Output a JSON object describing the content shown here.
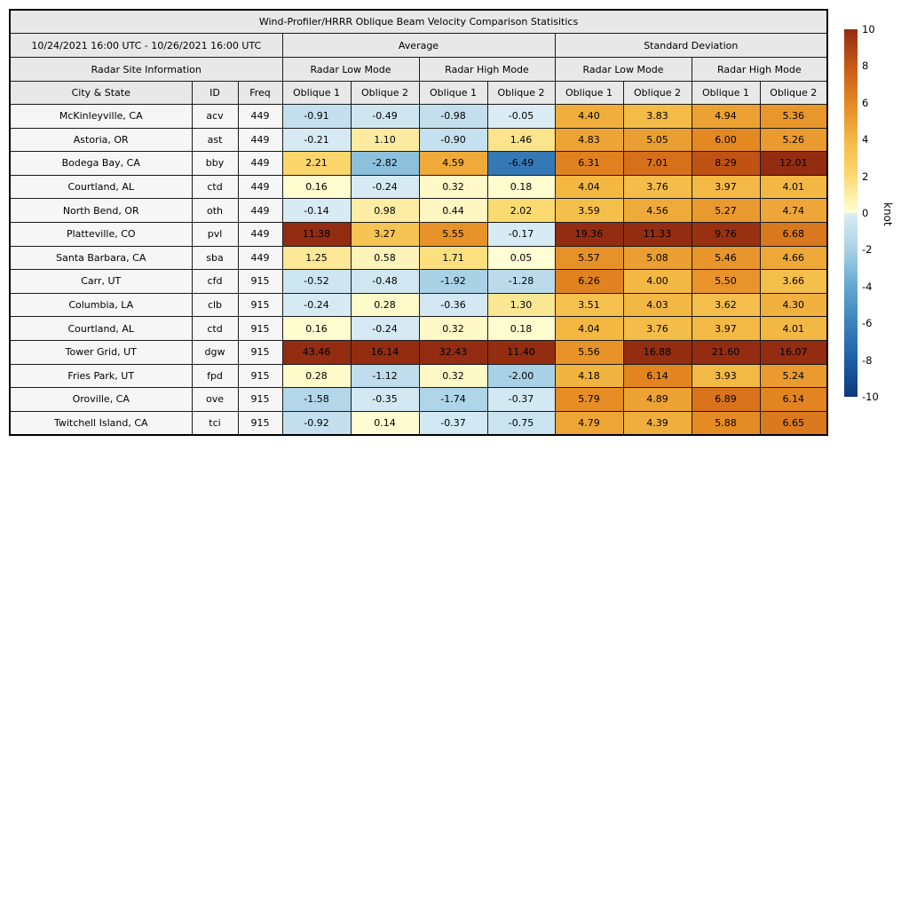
{
  "title": "Wind-Profiler/HRRR Oblique Beam Velocity Comparison Statisitics",
  "header": {
    "date_range": "10/24/2021 16:00 UTC - 10/26/2021 16:00 UTC",
    "group_average": "Average",
    "group_std": "Standard Deviation",
    "site_info": "Radar Site Information",
    "mode_labels": [
      "Radar Low Mode",
      "Radar High Mode",
      "Radar Low Mode",
      "Radar High Mode"
    ],
    "col_city": "City & State",
    "col_id": "ID",
    "col_freq": "Freq",
    "oblique_labels": [
      "Oblique 1",
      "Oblique 2",
      "Oblique 1",
      "Oblique 2",
      "Oblique 1",
      "Oblique 2",
      "Oblique 1",
      "Oblique 2"
    ]
  },
  "chart_data": {
    "type": "heatmap",
    "title": "Wind-Profiler/HRRR Oblique Beam Velocity Comparison Statisitics",
    "date_range": "10/24/2021 16:00 UTC - 10/26/2021 16:00 UTC",
    "column_groups": [
      "Average Radar Low Mode",
      "Average Radar High Mode",
      "Standard Deviation Radar Low Mode",
      "Standard Deviation Radar High Mode"
    ],
    "value_columns": [
      "Avg Low Oblique 1",
      "Avg Low Oblique 2",
      "Avg High Oblique 1",
      "Avg High Oblique 2",
      "SD Low Oblique 1",
      "SD Low Oblique 2",
      "SD High Oblique 1",
      "SD High Oblique 2"
    ],
    "rows": [
      {
        "city": "McKinleyville, CA",
        "id": "acv",
        "freq": "449",
        "values": [
          "-0.91",
          "-0.49",
          "-0.98",
          "-0.05",
          "4.40",
          "3.83",
          "4.94",
          "5.36"
        ]
      },
      {
        "city": "Astoria, OR",
        "id": "ast",
        "freq": "449",
        "values": [
          "-0.21",
          "1.10",
          "-0.90",
          "1.46",
          "4.83",
          "5.05",
          "6.00",
          "5.26"
        ]
      },
      {
        "city": "Bodega Bay, CA",
        "id": "bby",
        "freq": "449",
        "values": [
          "2.21",
          "-2.82",
          "4.59",
          "-6.49",
          "6.31",
          "7.01",
          "8.29",
          "12.01"
        ]
      },
      {
        "city": "Courtland, AL",
        "id": "ctd",
        "freq": "449",
        "values": [
          "0.16",
          "-0.24",
          "0.32",
          "0.18",
          "4.04",
          "3.76",
          "3.97",
          "4.01"
        ]
      },
      {
        "city": "North Bend, OR",
        "id": "oth",
        "freq": "449",
        "values": [
          "-0.14",
          "0.98",
          "0.44",
          "2.02",
          "3.59",
          "4.56",
          "5.27",
          "4.74"
        ]
      },
      {
        "city": "Platteville, CO",
        "id": "pvl",
        "freq": "449",
        "values": [
          "11.38",
          "3.27",
          "5.55",
          "-0.17",
          "19.36",
          "11.33",
          "9.76",
          "6.68"
        ]
      },
      {
        "city": "Santa Barbara, CA",
        "id": "sba",
        "freq": "449",
        "values": [
          "1.25",
          "0.58",
          "1.71",
          "0.05",
          "5.57",
          "5.08",
          "5.46",
          "4.66"
        ]
      },
      {
        "city": "Carr, UT",
        "id": "cfd",
        "freq": "915",
        "values": [
          "-0.52",
          "-0.48",
          "-1.92",
          "-1.28",
          "6.26",
          "4.00",
          "5.50",
          "3.66"
        ]
      },
      {
        "city": "Columbia, LA",
        "id": "clb",
        "freq": "915",
        "values": [
          "-0.24",
          "0.28",
          "-0.36",
          "1.30",
          "3.51",
          "4.03",
          "3.62",
          "4.30"
        ]
      },
      {
        "city": "Courtland, AL",
        "id": "ctd",
        "freq": "915",
        "values": [
          "0.16",
          "-0.24",
          "0.32",
          "0.18",
          "4.04",
          "3.76",
          "3.97",
          "4.01"
        ]
      },
      {
        "city": "Tower Grid, UT",
        "id": "dgw",
        "freq": "915",
        "values": [
          "43.46",
          "16.14",
          "32.43",
          "11.40",
          "5.56",
          "16.88",
          "21.60",
          "16.07"
        ]
      },
      {
        "city": "Fries Park, UT",
        "id": "fpd",
        "freq": "915",
        "values": [
          "0.28",
          "-1.12",
          "0.32",
          "-2.00",
          "4.18",
          "6.14",
          "3.93",
          "5.24"
        ]
      },
      {
        "city": "Oroville, CA",
        "id": "ove",
        "freq": "915",
        "values": [
          "-1.58",
          "-0.35",
          "-1.74",
          "-0.37",
          "5.79",
          "4.89",
          "6.89",
          "6.14"
        ]
      },
      {
        "city": "Twitchell Island, CA",
        "id": "tci",
        "freq": "915",
        "values": [
          "-0.92",
          "0.14",
          "-0.37",
          "-0.75",
          "4.79",
          "4.39",
          "5.88",
          "6.65"
        ]
      }
    ],
    "colorbar": {
      "label": "knot",
      "min": -10,
      "max": 10,
      "ticks": [
        10,
        8,
        6,
        4,
        2,
        0,
        -2,
        -4,
        -6,
        -8,
        -10
      ]
    },
    "color_scale": {
      "comment": "anchor colors at values 0,2,4,6,8,10 (pos) and 0,-2,-4,-6,-8,-10 (neg); values beyond range are clamped",
      "pos": [
        "#ffffd8",
        "#fbda70",
        "#f3b843",
        "#e48822",
        "#c85915",
        "#932c11"
      ],
      "neg": [
        "#dcedf5",
        "#a8d1e6",
        "#63a8d0",
        "#3b82bb",
        "#1e5ea6",
        "#0b3b7c"
      ]
    },
    "layout": {
      "header_bg": "#e8e8e8",
      "site_cell_bg": "#f6f6f6",
      "grid_color": "#1a1a1a"
    }
  }
}
